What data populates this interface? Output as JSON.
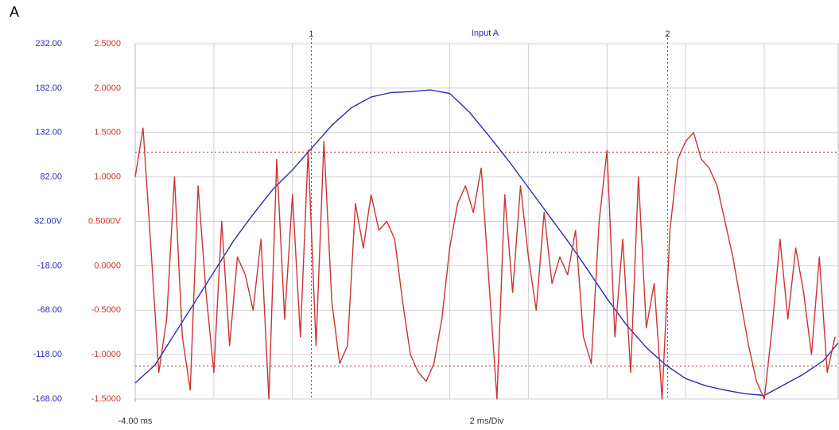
{
  "chart_data": {
    "type": "line",
    "panel_label": "A",
    "title": "Input A",
    "x_label": "2 ms/Div",
    "xlim": [
      -4,
      13.88
    ],
    "xticks": [
      {
        "value": -4,
        "label": "-4.00 ms"
      }
    ],
    "xgrid": [
      -2,
      0,
      2,
      4,
      6,
      8,
      10,
      12
    ],
    "ylim": [
      -168,
      232
    ],
    "yticks": [
      {
        "value": 232,
        "label": "232.00"
      },
      {
        "value": 182,
        "label": "182.00"
      },
      {
        "value": 132,
        "label": "132.00"
      },
      {
        "value": 82,
        "label": "82.00"
      },
      {
        "value": 32,
        "label": "32.00V"
      },
      {
        "value": -18,
        "label": "-18.00"
      },
      {
        "value": -68,
        "label": "-68.00"
      },
      {
        "value": -118,
        "label": "-118.00"
      },
      {
        "value": -168,
        "label": "-168.00"
      }
    ],
    "y2lim": [
      -1.5,
      2.5
    ],
    "y2ticks": [
      {
        "value": 2.5,
        "label": "2.5000"
      },
      {
        "value": 2,
        "label": "2.0000"
      },
      {
        "value": 1.5,
        "label": "1.5000"
      },
      {
        "value": 1,
        "label": "1.0000"
      },
      {
        "value": 0.5,
        "label": "0.5000V"
      },
      {
        "value": 0,
        "label": "0.0000"
      },
      {
        "value": -0.5,
        "label": "-0.5000"
      },
      {
        "value": -1,
        "label": "-1.0000"
      },
      {
        "value": -1.5,
        "label": "-1.5000"
      }
    ],
    "grid": true,
    "cursors": [
      {
        "label": "1",
        "x": 0.48
      },
      {
        "label": "2",
        "x": 9.54
      }
    ],
    "hcursors": [
      1.28,
      -1.13
    ],
    "series": [
      {
        "color": "#2b2bb8",
        "axis": "y",
        "x": [
          -4,
          -3.5,
          -3,
          -2.5,
          -2,
          -1.5,
          -1,
          -0.5,
          0,
          0.5,
          1,
          1.5,
          2,
          2.5,
          3,
          3.5,
          4,
          4.5,
          5,
          5.5,
          6,
          6.5,
          7,
          7.5,
          8,
          8.5,
          9,
          9.5,
          10,
          10.5,
          11,
          11.5,
          12,
          12.5,
          13,
          13.5,
          13.88
        ],
        "values": [
          -150,
          -130,
          -95,
          -60,
          -25,
          10,
          40,
          68,
          90,
          115,
          140,
          160,
          172,
          177,
          178,
          180,
          176,
          155,
          128,
          100,
          70,
          40,
          10,
          -22,
          -55,
          -85,
          -110,
          -130,
          -145,
          -153,
          -158,
          -162,
          -164,
          -152,
          -140,
          -125,
          -105
        ]
      },
      {
        "color": "#cc3333",
        "axis": "y2",
        "x": [
          -4,
          -3.8,
          -3.6,
          -3.4,
          -3.2,
          -3,
          -2.8,
          -2.6,
          -2.4,
          -2.2,
          -2,
          -1.8,
          -1.6,
          -1.4,
          -1.2,
          -1,
          -0.8,
          -0.6,
          -0.4,
          -0.2,
          0,
          0.2,
          0.4,
          0.6,
          0.8,
          1,
          1.2,
          1.4,
          1.6,
          1.8,
          2,
          2.2,
          2.4,
          2.6,
          2.8,
          3,
          3.2,
          3.4,
          3.6,
          3.8,
          4,
          4.2,
          4.4,
          4.6,
          4.8,
          5,
          5.2,
          5.4,
          5.6,
          5.8,
          6,
          6.2,
          6.4,
          6.6,
          6.8,
          7,
          7.2,
          7.4,
          7.6,
          7.8,
          8,
          8.2,
          8.4,
          8.6,
          8.8,
          9,
          9.2,
          9.4,
          9.6,
          9.8,
          10,
          10.2,
          10.4,
          10.6,
          10.8,
          11,
          11.2,
          11.4,
          11.6,
          11.8,
          12,
          12.2,
          12.4,
          12.6,
          12.8,
          13,
          13.2,
          13.4,
          13.6,
          13.8
        ],
        "values": [
          1,
          1.55,
          0.2,
          -1.2,
          -0.6,
          1,
          -0.8,
          -1.4,
          0.9,
          -0.3,
          -1.2,
          0.5,
          -0.9,
          0.1,
          -0.1,
          -0.5,
          0.3,
          -1.5,
          1.2,
          -0.6,
          0.8,
          -0.8,
          1.3,
          -0.9,
          1.4,
          -0.4,
          -1.1,
          -0.9,
          0.7,
          0.2,
          0.8,
          0.4,
          0.5,
          0.3,
          -0.4,
          -1,
          -1.2,
          -1.3,
          -1.1,
          -0.6,
          0.2,
          0.7,
          0.9,
          0.6,
          1.1,
          -0.2,
          -1.5,
          0.8,
          -0.3,
          0.9,
          0.1,
          -0.5,
          0.6,
          -0.2,
          0.1,
          -0.1,
          0.4,
          -0.8,
          -1.1,
          0.5,
          1.3,
          -0.8,
          0.3,
          -1.2,
          1,
          -0.7,
          -0.2,
          -1.5,
          0.4,
          1.2,
          1.4,
          1.5,
          1.2,
          1.1,
          0.9,
          0.5,
          0.1,
          -0.4,
          -0.9,
          -1.3,
          -1.5,
          -0.7,
          0.3,
          -0.6,
          0.2,
          -0.3,
          -1,
          0.1,
          -1.2,
          -0.8
        ]
      }
    ]
  }
}
